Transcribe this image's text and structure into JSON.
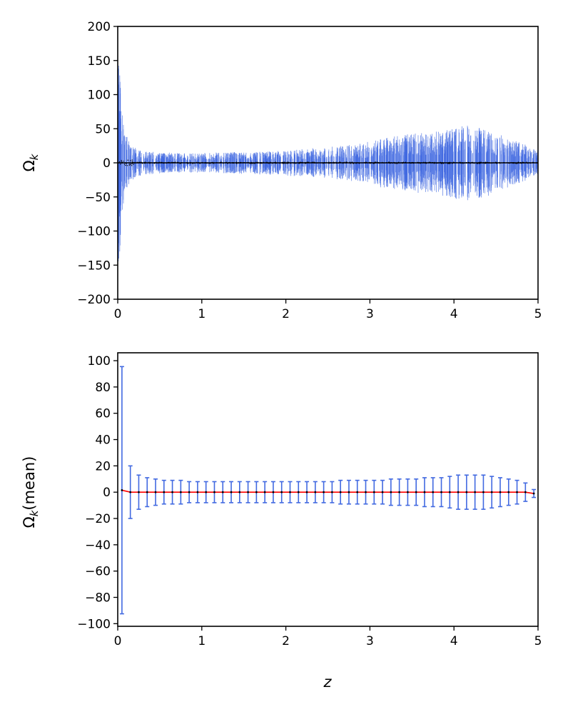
{
  "colors": {
    "errorbar": "#4169e1",
    "scatter_points": "#000000",
    "mean_line": "#ff0000",
    "mean_points": "#000000"
  },
  "chart_data": [
    {
      "type": "scatter",
      "description": "Per-object Omega_k with error bars vs redshift",
      "title": "",
      "xlabel": "",
      "ylabel": "Ω_k",
      "ylabel_main": "Ω",
      "ylabel_sub": "k",
      "xlim": [
        0,
        5
      ],
      "ylim": [
        -200,
        200
      ],
      "xticks": [
        "0",
        "1",
        "2",
        "3",
        "4",
        "5"
      ],
      "yticks": [
        "200",
        "150",
        "100",
        "50",
        "0",
        "−50",
        "−100",
        "−150",
        "−200"
      ],
      "ytick_values": [
        200,
        150,
        100,
        50,
        0,
        -50,
        -100,
        -150,
        -200
      ],
      "series": [
        {
          "x": [
            0.01,
            0.02,
            0.03,
            0.05,
            0.07,
            0.1,
            0.15,
            0.2,
            0.3,
            0.5,
            0.8,
            1.0,
            1.5,
            2.0,
            2.5,
            3.0,
            3.2,
            3.5,
            3.8,
            4.0,
            4.1,
            4.3,
            4.6,
            4.8,
            5.0
          ],
          "y": [
            0,
            0,
            0,
            0,
            0,
            0,
            0,
            0,
            0,
            0,
            0,
            0,
            0,
            0,
            0,
            0,
            0,
            0,
            0,
            0,
            0,
            0,
            0,
            0,
            0
          ],
          "error_envelope": [
            190,
            170,
            140,
            100,
            65,
            40,
            28,
            22,
            18,
            15,
            14,
            14,
            16,
            18,
            22,
            30,
            38,
            42,
            45,
            50,
            55,
            52,
            38,
            30,
            18
          ]
        }
      ]
    },
    {
      "type": "scatter",
      "description": "Binned mean Omega_k with error bars vs redshift",
      "title": "",
      "xlabel": "z",
      "ylabel": "Ω_k(mean)",
      "ylabel_main": "Ω",
      "ylabel_sub": "k",
      "ylabel_tail": "(mean)",
      "xlim": [
        0,
        5
      ],
      "ylim": [
        -102,
        106
      ],
      "xticks": [
        "0",
        "1",
        "2",
        "3",
        "4",
        "5"
      ],
      "yticks": [
        "100",
        "80",
        "60",
        "40",
        "20",
        "0",
        "−20",
        "−40",
        "−60",
        "−80",
        "−100"
      ],
      "ytick_values": [
        100,
        80,
        60,
        40,
        20,
        0,
        -20,
        -40,
        -60,
        -80,
        -100
      ],
      "series": [
        {
          "x": [
            0.05,
            0.15,
            0.25,
            0.35,
            0.45,
            0.55,
            0.65,
            0.75,
            0.85,
            0.95,
            1.05,
            1.15,
            1.25,
            1.35,
            1.45,
            1.55,
            1.65,
            1.75,
            1.85,
            1.95,
            2.05,
            2.15,
            2.25,
            2.35,
            2.45,
            2.55,
            2.65,
            2.75,
            2.85,
            2.95,
            3.05,
            3.15,
            3.25,
            3.35,
            3.45,
            3.55,
            3.65,
            3.75,
            3.85,
            3.95,
            4.05,
            4.15,
            4.25,
            4.35,
            4.45,
            4.55,
            4.65,
            4.75,
            4.85,
            4.95
          ],
          "y": [
            1.5,
            0,
            0,
            0,
            0,
            0,
            0,
            0,
            0,
            0,
            0,
            0,
            0,
            0,
            0,
            0,
            0,
            0,
            0,
            0,
            0,
            0,
            0,
            0,
            0,
            0,
            0,
            0,
            0,
            0,
            0,
            0,
            0,
            0,
            0,
            0,
            0,
            0,
            0,
            0,
            0,
            0,
            0,
            0,
            0,
            0,
            0,
            0,
            0,
            -1
          ],
          "err": [
            94,
            20,
            13,
            11,
            10,
            9,
            9,
            9,
            8,
            8,
            8,
            8,
            8,
            8,
            8,
            8,
            8,
            8,
            8,
            8,
            8,
            8,
            8,
            8,
            8,
            8,
            9,
            9,
            9,
            9,
            9,
            9,
            10,
            10,
            10,
            10,
            11,
            11,
            11,
            12,
            13,
            13,
            13,
            13,
            12,
            11,
            10,
            9,
            7,
            3
          ]
        }
      ]
    }
  ]
}
